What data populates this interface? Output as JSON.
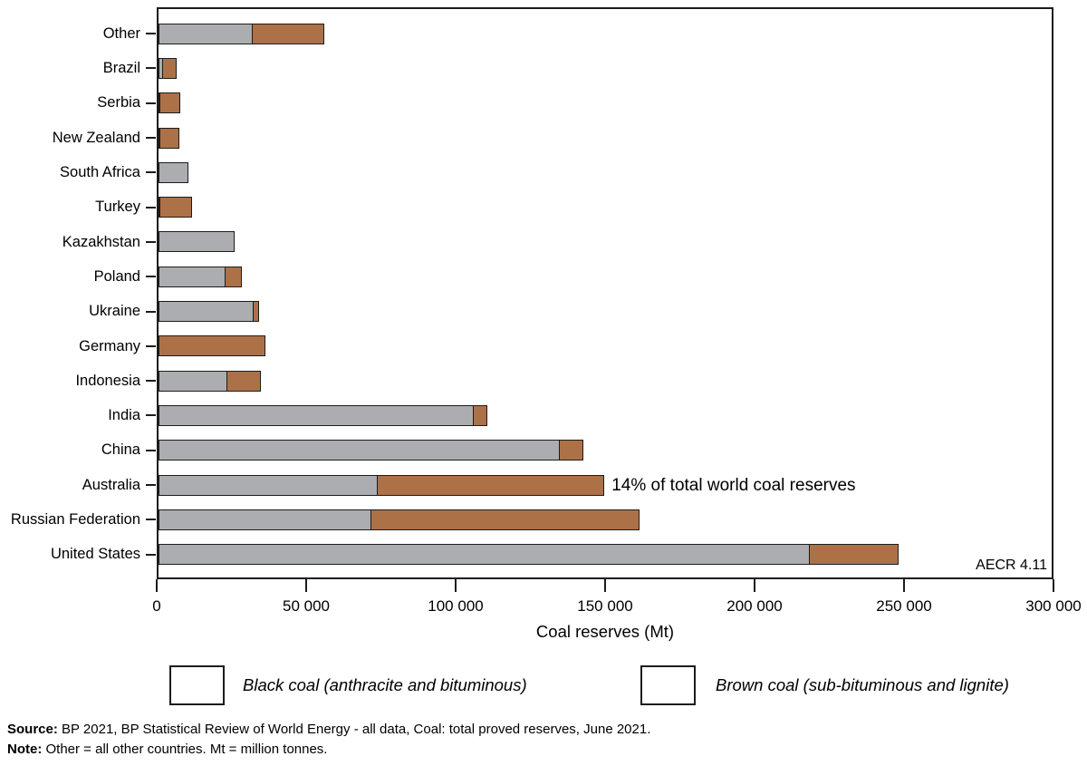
{
  "chart_data": {
    "type": "bar",
    "orientation": "horizontal-stacked",
    "xlabel": "Coal reserves (Mt)",
    "xlim": [
      0,
      300000
    ],
    "x_ticks": [
      {
        "value": 0,
        "label": "0"
      },
      {
        "value": 50000,
        "label": "50 000"
      },
      {
        "value": 100000,
        "label": "100 000"
      },
      {
        "value": 150000,
        "label": "150 000"
      },
      {
        "value": 200000,
        "label": "200 000"
      },
      {
        "value": 250000,
        "label": "250 000"
      },
      {
        "value": 300000,
        "label": "300 000"
      }
    ],
    "categories": [
      "Other",
      "Brazil",
      "Serbia",
      "New Zealand",
      "South Africa",
      "Turkey",
      "Kazakhstan",
      "Poland",
      "Ukraine",
      "Germany",
      "Indonesia",
      "India",
      "China",
      "Australia",
      "Russian Federation",
      "United States"
    ],
    "series": [
      {
        "name": "Black coal (anthracite and bituminous)",
        "color": "#abadb0",
        "values": [
          31682,
          1547,
          402,
          825,
          9893,
          551,
          25605,
          22530,
          32039,
          0,
          23141,
          105979,
          135069,
          73719,
          71719,
          218938
        ]
      },
      {
        "name": "Brown coal (sub-bituminous and lignite)",
        "color": "#ad7148",
        "values": [
          24595,
          5049,
          7112,
          6750,
          0,
          10975,
          0,
          5865,
          2336,
          35900,
          11728,
          5073,
          8128,
          76508,
          90447,
          30003
        ]
      }
    ],
    "annotation": {
      "text": "14% of total world coal reserves",
      "category": "Australia"
    },
    "figure_label": "AECR 4.11",
    "border_color": "#1c1c1c",
    "grid": false,
    "legend_position": "bottom"
  },
  "footer": {
    "source_label": "Source:",
    "source_text": " BP 2021, BP Statistical Review of World Energy - all data, Coal: total proved reserves, June 2021.",
    "note_label": "Note:",
    "note_text": " Other = all other countries. Mt = million tonnes."
  }
}
